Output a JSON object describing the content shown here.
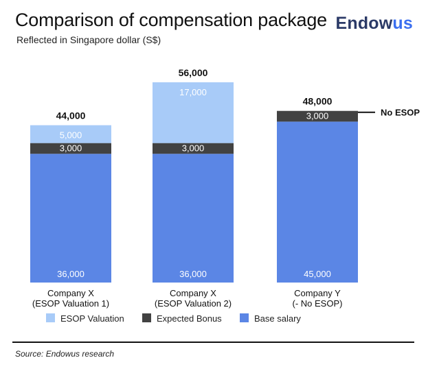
{
  "header": {
    "title": "Comparison of compensation package",
    "subtitle": "Reflected in Singapore dollar (S$)",
    "logo_part1": "Endow",
    "logo_part2": "us"
  },
  "footer": {
    "source": "Source: Endowus research"
  },
  "colors": {
    "esop": "#a8cbf8",
    "bonus": "#424242",
    "base": "#5b86e5",
    "logo_dark": "#2b3a67",
    "logo_accent": "#3b6ff0"
  },
  "chart_data": {
    "type": "bar",
    "stacked": true,
    "categories": [
      [
        "Company X",
        "(ESOP Valuation 1)"
      ],
      [
        "Company X",
        "(ESOP Valuation 2)"
      ],
      [
        "Company Y",
        "(- No ESOP)"
      ]
    ],
    "series": [
      {
        "name": "Base salary",
        "values": [
          36000,
          36000,
          45000
        ],
        "labels": [
          "36,000",
          "36,000",
          "45,000"
        ]
      },
      {
        "name": "Expected Bonus",
        "values": [
          3000,
          3000,
          3000
        ],
        "labels": [
          "3,000",
          "3,000",
          "3,000"
        ]
      },
      {
        "name": "ESOP Valuation",
        "values": [
          5000,
          17000,
          0
        ],
        "labels": [
          "5,000",
          "17,000",
          ""
        ]
      }
    ],
    "totals": [
      "44,000",
      "56,000",
      "48,000"
    ],
    "legend": [
      "ESOP Valuation",
      "Expected Bonus",
      "Base salary"
    ],
    "legend_position": "bottom",
    "annotation": {
      "text": "No ESOP",
      "category_index": 2
    },
    "ylim": [
      0,
      56000
    ],
    "grid": false
  }
}
